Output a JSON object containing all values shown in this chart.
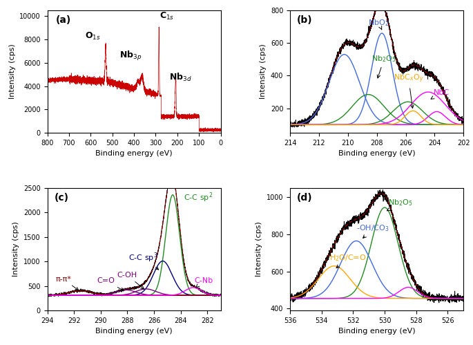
{
  "panel_a": {
    "label": "(a)",
    "xlabel": "Binding energy (eV)",
    "ylabel": "Intensity (cps)",
    "xlim": [
      800,
      0
    ],
    "ylim": [
      0,
      10500
    ],
    "yticks": [
      0,
      2000,
      4000,
      6000,
      8000,
      10000
    ],
    "color": "#cc0000"
  },
  "panel_b": {
    "label": "(b)",
    "xlabel": "Binding energy (eV)",
    "ylabel": "Intensity (cps)",
    "xlim": [
      214,
      202
    ],
    "ylim": [
      50,
      800
    ],
    "yticks": [
      200,
      400,
      600,
      800
    ]
  },
  "panel_c": {
    "label": "(c)",
    "xlabel": "Binding energy (eV)",
    "ylabel": "Intensity (cps)",
    "xlim": [
      294,
      281
    ],
    "ylim": [
      0,
      2500
    ],
    "yticks": [
      0,
      500,
      1000,
      1500,
      2000,
      2500
    ]
  },
  "panel_d": {
    "label": "(d)",
    "xlabel": "Binding energy (eV)",
    "ylabel": "Intensity (cps)",
    "xlim": [
      536,
      525
    ],
    "ylim": [
      390,
      1050
    ],
    "yticks": [
      400,
      600,
      800,
      1000
    ]
  }
}
